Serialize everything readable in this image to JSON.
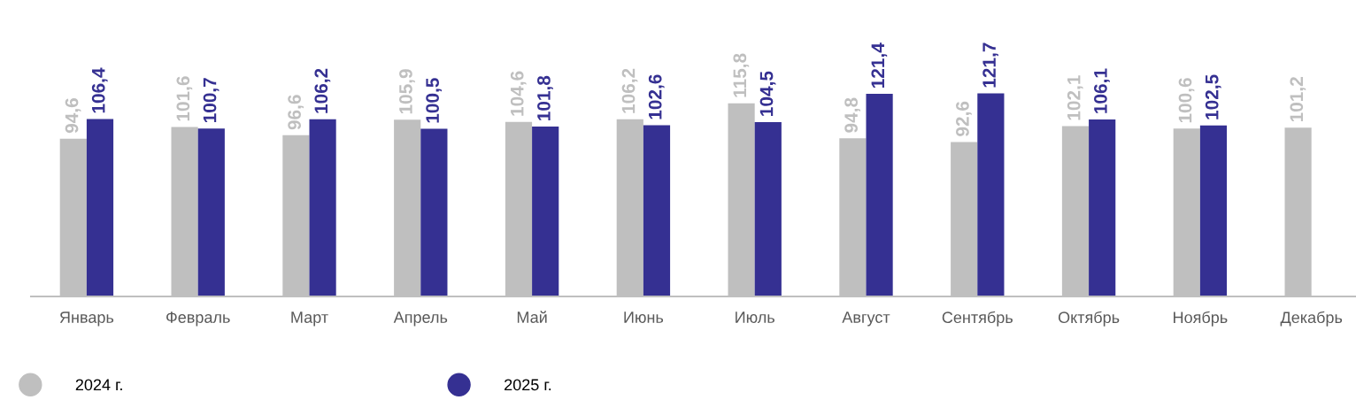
{
  "chart_data": {
    "type": "bar",
    "categories": [
      "Январь",
      "Февраль",
      "Март",
      "Апрель",
      "Май",
      "Июнь",
      "Июль",
      "Август",
      "Сентябрь",
      "Октябрь",
      "Ноябрь",
      "Декабрь"
    ],
    "series": [
      {
        "name": "2024 г.",
        "color": "#bfbfbf",
        "values": [
          94.6,
          101.6,
          96.6,
          105.9,
          104.6,
          106.2,
          115.8,
          94.8,
          92.6,
          102.1,
          100.6,
          101.2
        ],
        "value_labels": [
          "94,6",
          "101,6",
          "96,6",
          "105,9",
          "104,6",
          "106,2",
          "115,8",
          "94,8",
          "92,6",
          "102,1",
          "100,6",
          "101,2"
        ]
      },
      {
        "name": "2025 г.",
        "color": "#353092",
        "values": [
          106.4,
          100.7,
          106.2,
          100.5,
          101.8,
          102.6,
          104.5,
          121.4,
          121.7,
          106.1,
          102.5,
          null
        ],
        "value_labels": [
          "106,4",
          "100,7",
          "106,2",
          "100,5",
          "101,8",
          "102,6",
          "104,5",
          "121,4",
          "121,7",
          "106,1",
          "102,5",
          null
        ]
      }
    ],
    "legend": "bottom left",
    "grid": false
  }
}
